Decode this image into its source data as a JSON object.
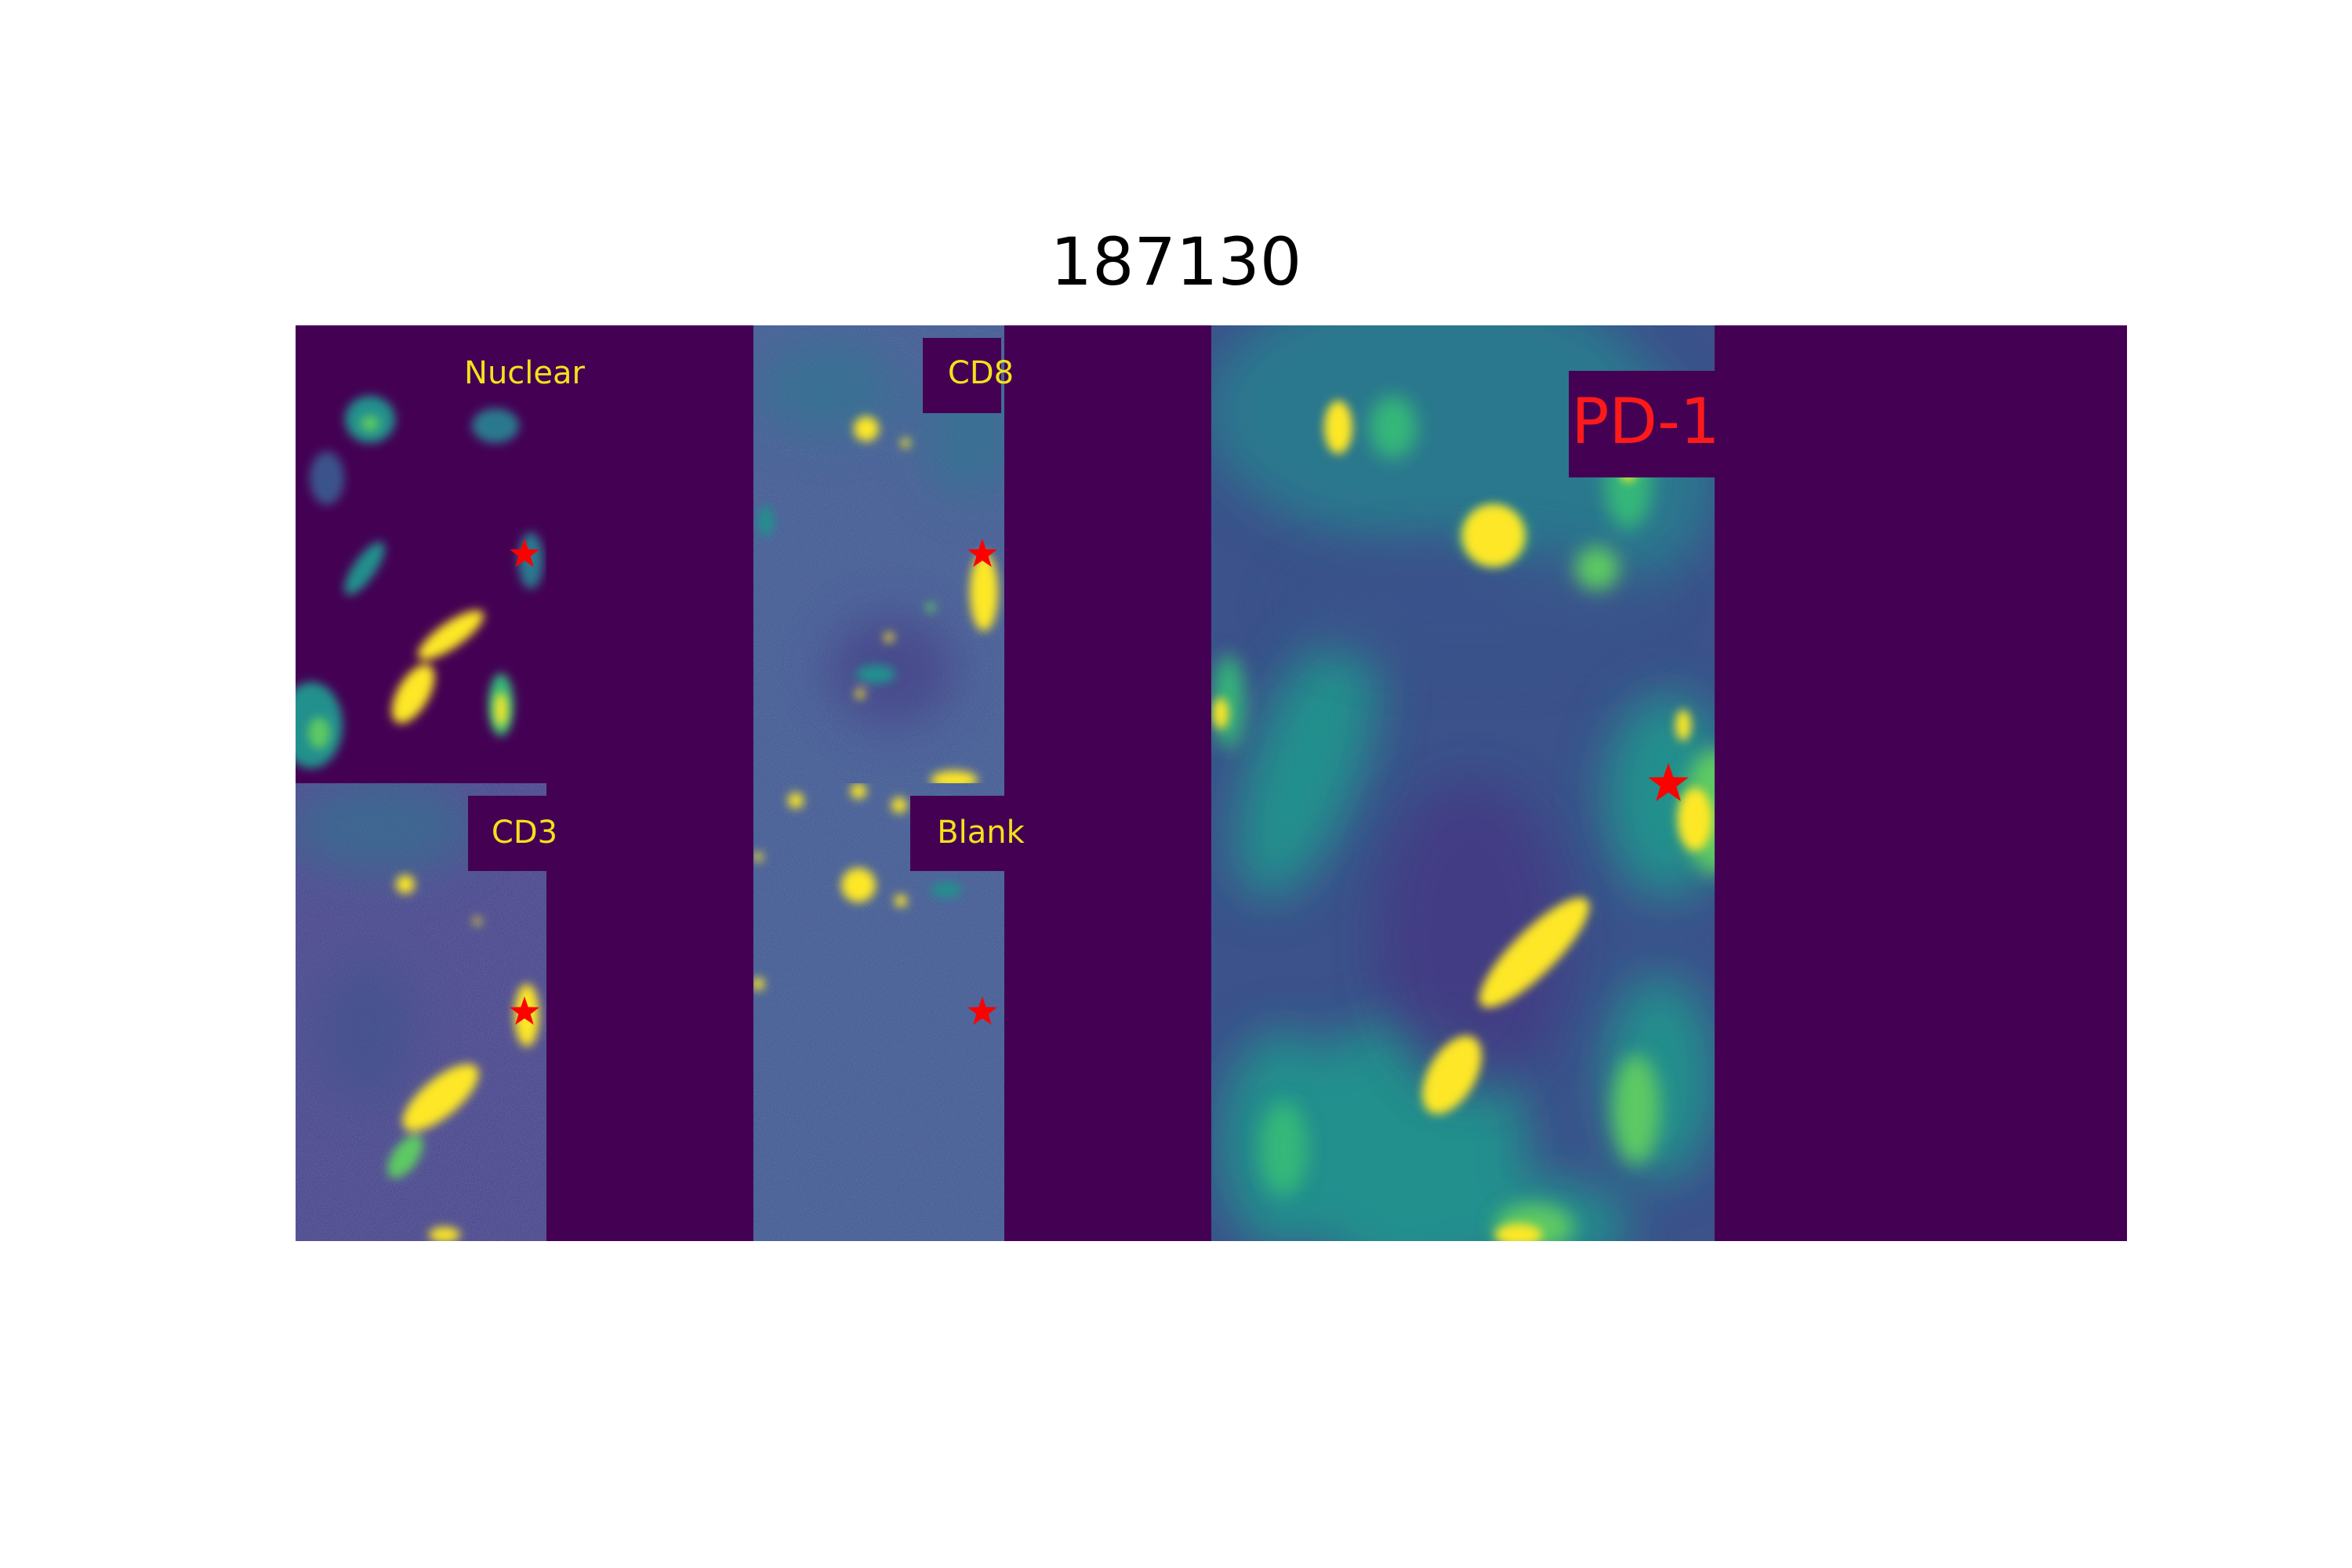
{
  "title": "187130",
  "panels": [
    {
      "id": "nuclear",
      "label": "Nuclear",
      "label_color": "#f5e11a"
    },
    {
      "id": "cd8",
      "label": "CD8",
      "label_color": "#f5e11a"
    },
    {
      "id": "cd3",
      "label": "CD3",
      "label_color": "#f5e11a"
    },
    {
      "id": "blank",
      "label": "Blank",
      "label_color": "#f5e11a"
    },
    {
      "id": "pd1",
      "label": "PD-1",
      "label_color": "#ff1a1a"
    }
  ],
  "colors": {
    "background": "#440154",
    "mid": "#3b528b",
    "teal": "#21908d",
    "green": "#5dc963",
    "bright": "#fde725",
    "marker": "#ff0000"
  },
  "marker_icon": "star-icon"
}
